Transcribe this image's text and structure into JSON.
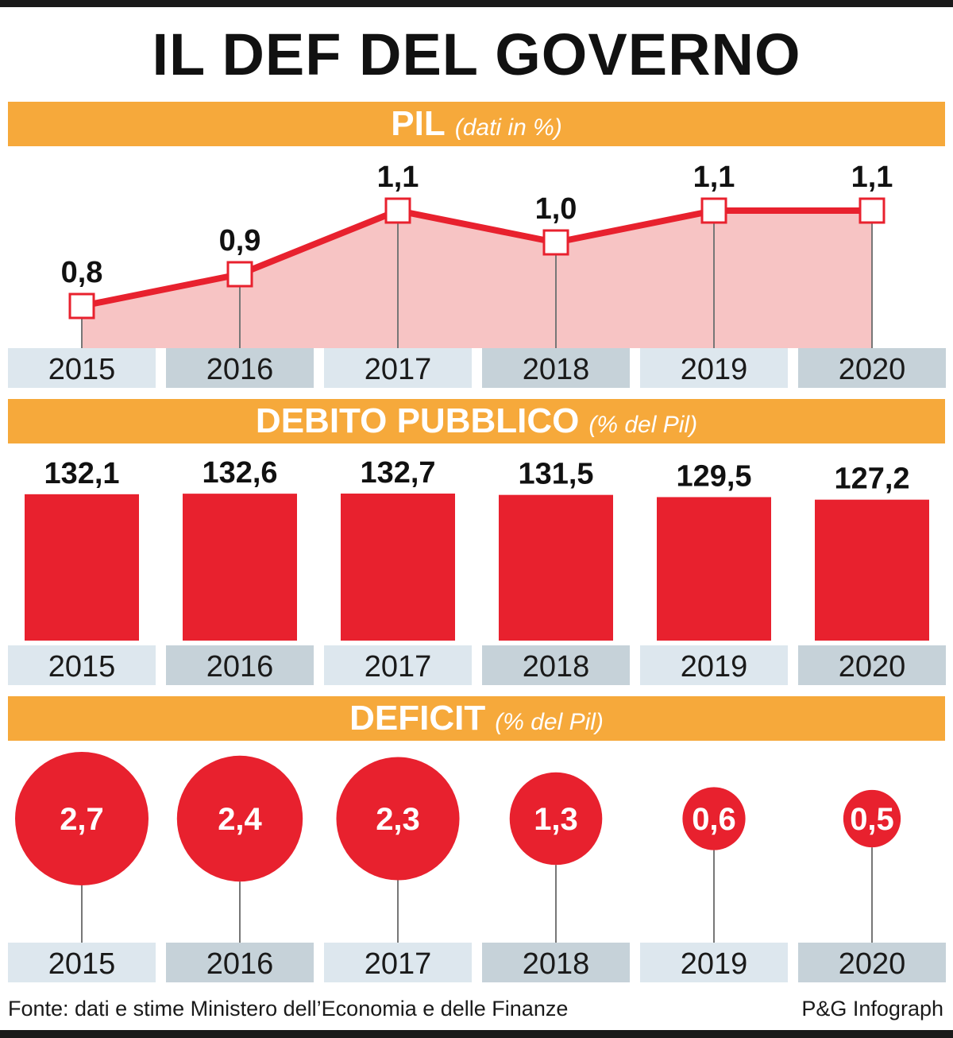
{
  "title": "IL DEF DEL GOVERNO",
  "source": "Fonte: dati e stime Ministero dell’Economia e delle Finanze",
  "credit": "P&G Infograph",
  "colors": {
    "band": "#f6a93b",
    "red": "#e8212e",
    "area": "#f7c4c4"
  },
  "chart_data": [
    {
      "type": "area",
      "title": "PIL",
      "subtitle": "(dati in %)",
      "categories": [
        "2015",
        "2016",
        "2017",
        "2018",
        "2019",
        "2020"
      ],
      "values": [
        0.8,
        0.9,
        1.1,
        1.0,
        1.1,
        1.1
      ],
      "labels": [
        "0,8",
        "0,9",
        "1,1",
        "1,0",
        "1,1",
        "1,1"
      ]
    },
    {
      "type": "bar",
      "title": "DEBITO PUBBLICO",
      "subtitle": "(% del Pil)",
      "categories": [
        "2015",
        "2016",
        "2017",
        "2018",
        "2019",
        "2020"
      ],
      "values": [
        132.1,
        132.6,
        132.7,
        131.5,
        129.5,
        127.2
      ],
      "labels": [
        "132,1",
        "132,6",
        "132,7",
        "131,5",
        "129,5",
        "127,2"
      ]
    },
    {
      "type": "scatter",
      "title": "DEFICIT",
      "subtitle": "(% del Pil)",
      "categories": [
        "2015",
        "2016",
        "2017",
        "2018",
        "2019",
        "2020"
      ],
      "values": [
        2.7,
        2.4,
        2.3,
        1.3,
        0.6,
        0.5
      ],
      "labels": [
        "2,7",
        "2,4",
        "2,3",
        "1,3",
        "0,6",
        "0,5"
      ]
    }
  ]
}
